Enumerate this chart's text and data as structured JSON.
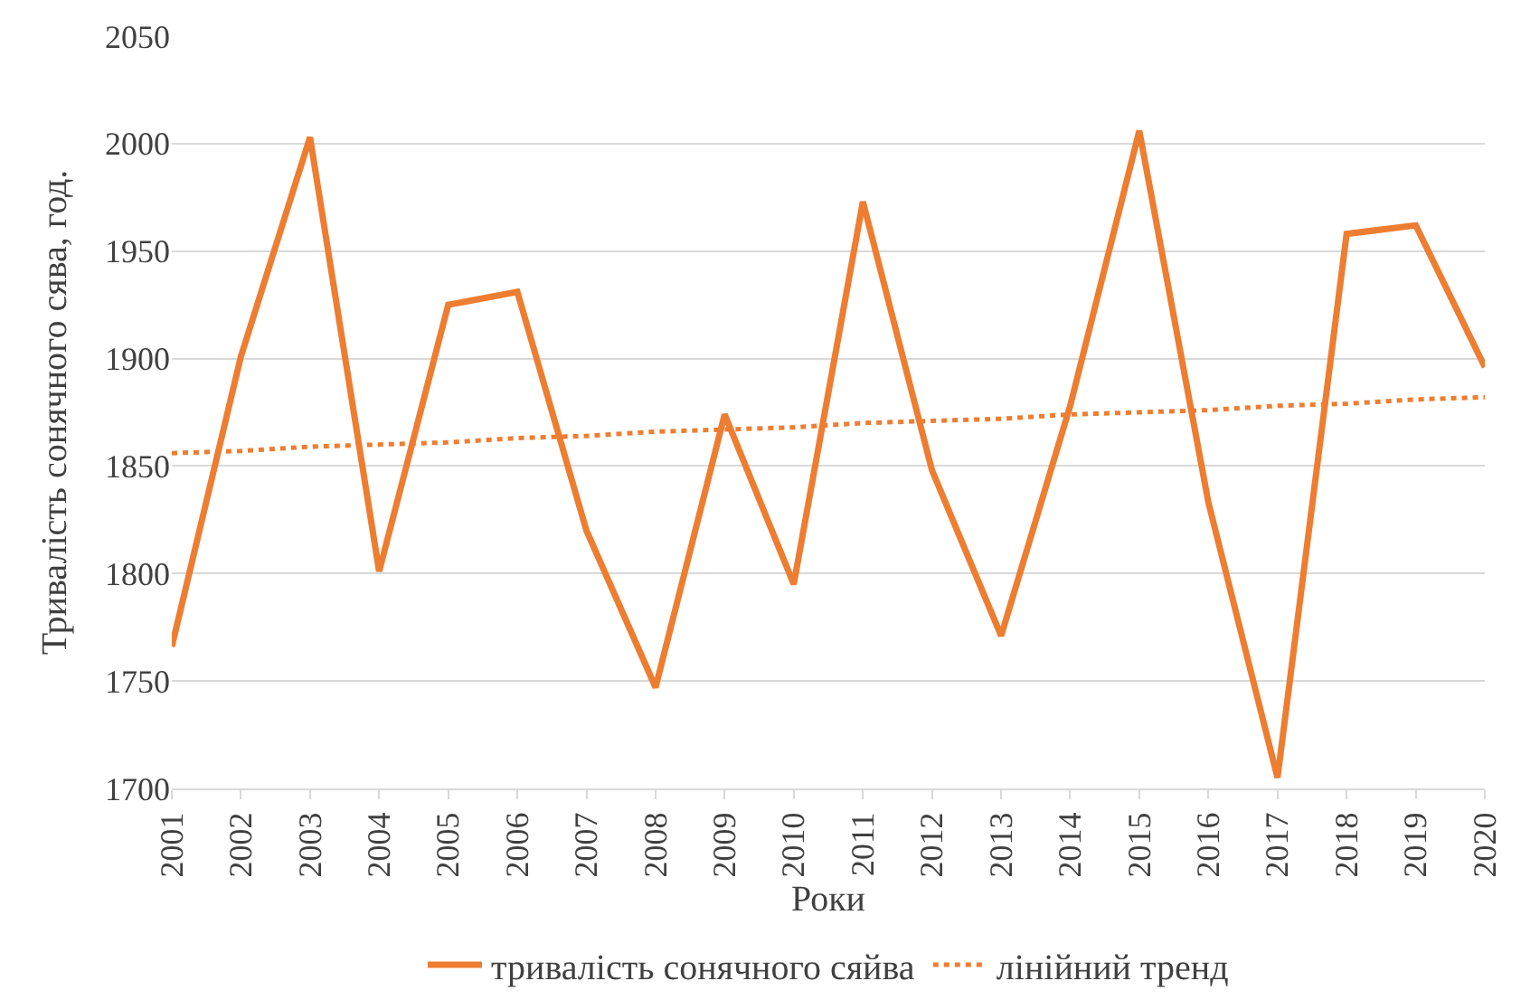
{
  "chart_data": {
    "type": "line",
    "xlabel": "Роки",
    "ylabel": "Тривалість сонячного сява, год.",
    "categories": [
      "2001",
      "2002",
      "2003",
      "2004",
      "2005",
      "2006",
      "2007",
      "2008",
      "2009",
      "2010",
      "2011",
      "2012",
      "2013",
      "2014",
      "2015",
      "2016",
      "2017",
      "2018",
      "2019",
      "2020"
    ],
    "series": [
      {
        "name": "тривалість сонячного сяйва",
        "color": "#ed7d31",
        "line_style": "solid",
        "values": [
          1766,
          1901,
          2003,
          1801,
          1925,
          1931,
          1820,
          1747,
          1874,
          1795,
          1973,
          1848,
          1771,
          1878,
          2006,
          1833,
          1705,
          1958,
          1962,
          1896
        ]
      },
      {
        "name": "лінійний тренд",
        "color": "#ed7d31",
        "line_style": "dotted",
        "values": [
          1856,
          1857,
          1859,
          1860,
          1861,
          1863,
          1864,
          1866,
          1867,
          1868,
          1870,
          1871,
          1872,
          1874,
          1875,
          1876,
          1878,
          1879,
          1881,
          1882
        ]
      }
    ],
    "ylim": [
      1700,
      2050
    ],
    "yticks": [
      1700,
      1750,
      1800,
      1850,
      1900,
      1950,
      2000,
      2050
    ],
    "grid": "y",
    "legend": "bottom",
    "marker": "none"
  }
}
